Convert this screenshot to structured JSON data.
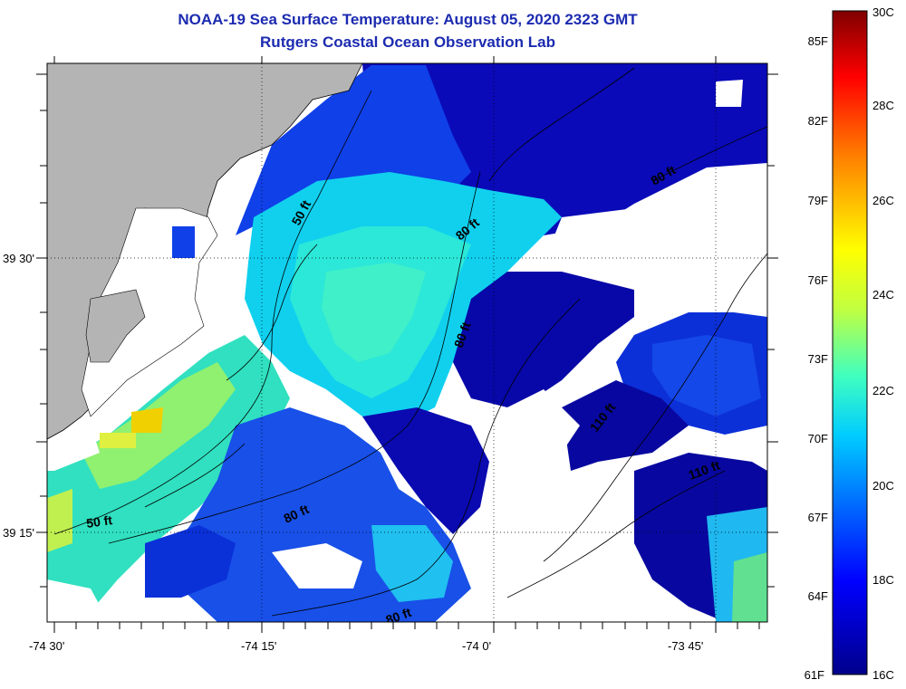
{
  "title": "NOAA-19 Sea Surface Temperature:  August 05, 2020 2323 GMT",
  "subtitle": "Rutgers Coastal Ocean Observation Lab",
  "colors": {
    "land": "#b4b4b4",
    "cloud_mask": "#ffffff",
    "title_text": "#1c2bb0",
    "contour": "#000000"
  },
  "map": {
    "lon_ticks": [
      "-74 30'",
      "-74 15'",
      "-74 0'",
      "-73 45'"
    ],
    "lat_ticks": [
      "39 30'",
      "39 15'"
    ],
    "contour_labels": [
      {
        "text": "50 ft",
        "depth_ft": 50
      },
      {
        "text": "80 ft",
        "depth_ft": 80
      },
      {
        "text": "80 ft",
        "depth_ft": 80
      },
      {
        "text": "80 ft",
        "depth_ft": 80
      },
      {
        "text": "80 ft",
        "depth_ft": 80
      },
      {
        "text": "80 ft",
        "depth_ft": 80
      },
      {
        "text": "50 ft",
        "depth_ft": 50
      },
      {
        "text": "110 ft",
        "depth_ft": 110
      },
      {
        "text": "110 ft",
        "depth_ft": 110
      }
    ]
  },
  "colorbar": {
    "fahrenheit": [
      "85F",
      "82F",
      "79F",
      "76F",
      "73F",
      "70F",
      "67F",
      "64F",
      "61F"
    ],
    "celsius": [
      "30C",
      "28C",
      "26C",
      "24C",
      "22C",
      "20C",
      "18C",
      "16C"
    ],
    "range_c": [
      16,
      30
    ],
    "stops": [
      "#00008b",
      "#0000ff",
      "#00ccff",
      "#40ffbf",
      "#c0ff40",
      "#ffff00",
      "#ff8000",
      "#ff0000",
      "#800000"
    ]
  }
}
